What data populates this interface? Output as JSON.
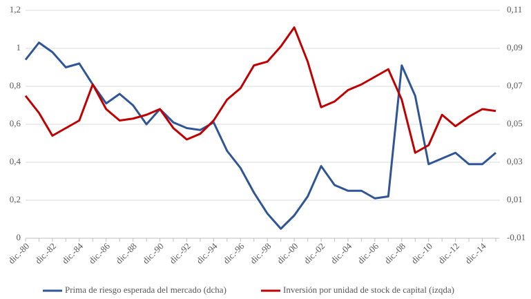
{
  "chart_data": {
    "type": "line",
    "categories": [
      "dic.-80",
      null,
      "dic.-82",
      null,
      "dic.-84",
      null,
      "dic.-86",
      null,
      "dic.-88",
      null,
      "dic.-90",
      null,
      "dic.-92",
      null,
      "dic.-94",
      null,
      "dic.-96",
      null,
      "dic.-98",
      null,
      "dic.-00",
      null,
      "dic.-02",
      null,
      "dic.-04",
      null,
      "dic.-06",
      null,
      "dic.-08",
      null,
      "dic.-10",
      null,
      "dic.-12",
      null,
      "dic.-14",
      null
    ],
    "series": [
      {
        "name": "Prima de riesgo esperada del mercado (dcha)",
        "color": "#2f5597",
        "axis": "y2",
        "values": [
          0.084,
          0.093,
          0.088,
          0.08,
          0.082,
          0.071,
          0.061,
          0.066,
          0.06,
          0.05,
          0.058,
          0.051,
          0.048,
          0.047,
          0.051,
          0.036,
          0.027,
          0.014,
          0.003,
          -0.005,
          0.002,
          0.012,
          0.028,
          0.018,
          0.015,
          0.015,
          0.011,
          0.012,
          0.081,
          0.065,
          0.029,
          0.032,
          0.035,
          0.029,
          0.029,
          0.035
        ]
      },
      {
        "name": "Inversión por unidad de stock de capital (izqda)",
        "color": "#c00000",
        "values": [
          0.75,
          0.66,
          0.54,
          0.58,
          0.62,
          0.81,
          0.68,
          0.62,
          0.63,
          0.65,
          0.68,
          0.58,
          0.52,
          0.55,
          0.62,
          0.73,
          0.79,
          0.91,
          0.93,
          1.01,
          1.11,
          0.93,
          0.69,
          0.72,
          0.78,
          0.81,
          0.85,
          0.89,
          0.73,
          0.45,
          0.49,
          0.65,
          0.59,
          0.64,
          0.68,
          0.67
        ]
      }
    ],
    "ylim": [
      0,
      1.2
    ],
    "yticks": [
      0,
      {
        "value": 0.2,
        "label": "0,2"
      },
      {
        "value": 0.4,
        "label": "0,4"
      },
      {
        "value": 0.6,
        "label": "0,6"
      },
      {
        "value": 0.8,
        "label": "0,8"
      },
      1,
      {
        "value": 1.2,
        "label": "1,2"
      }
    ],
    "y2lim": [
      -0.01,
      0.11
    ],
    "y2ticks": [
      {
        "value": -0.01,
        "label": "-0,01"
      },
      {
        "value": 0.01,
        "label": "0,01"
      },
      {
        "value": 0.03,
        "label": "0,03"
      },
      {
        "value": 0.05,
        "label": "0,05"
      },
      {
        "value": 0.07,
        "label": "0,07"
      },
      {
        "value": 0.09,
        "label": "0,09"
      },
      {
        "value": 0.11,
        "label": "0,11"
      }
    ],
    "grid": true,
    "legend": "bottom"
  }
}
